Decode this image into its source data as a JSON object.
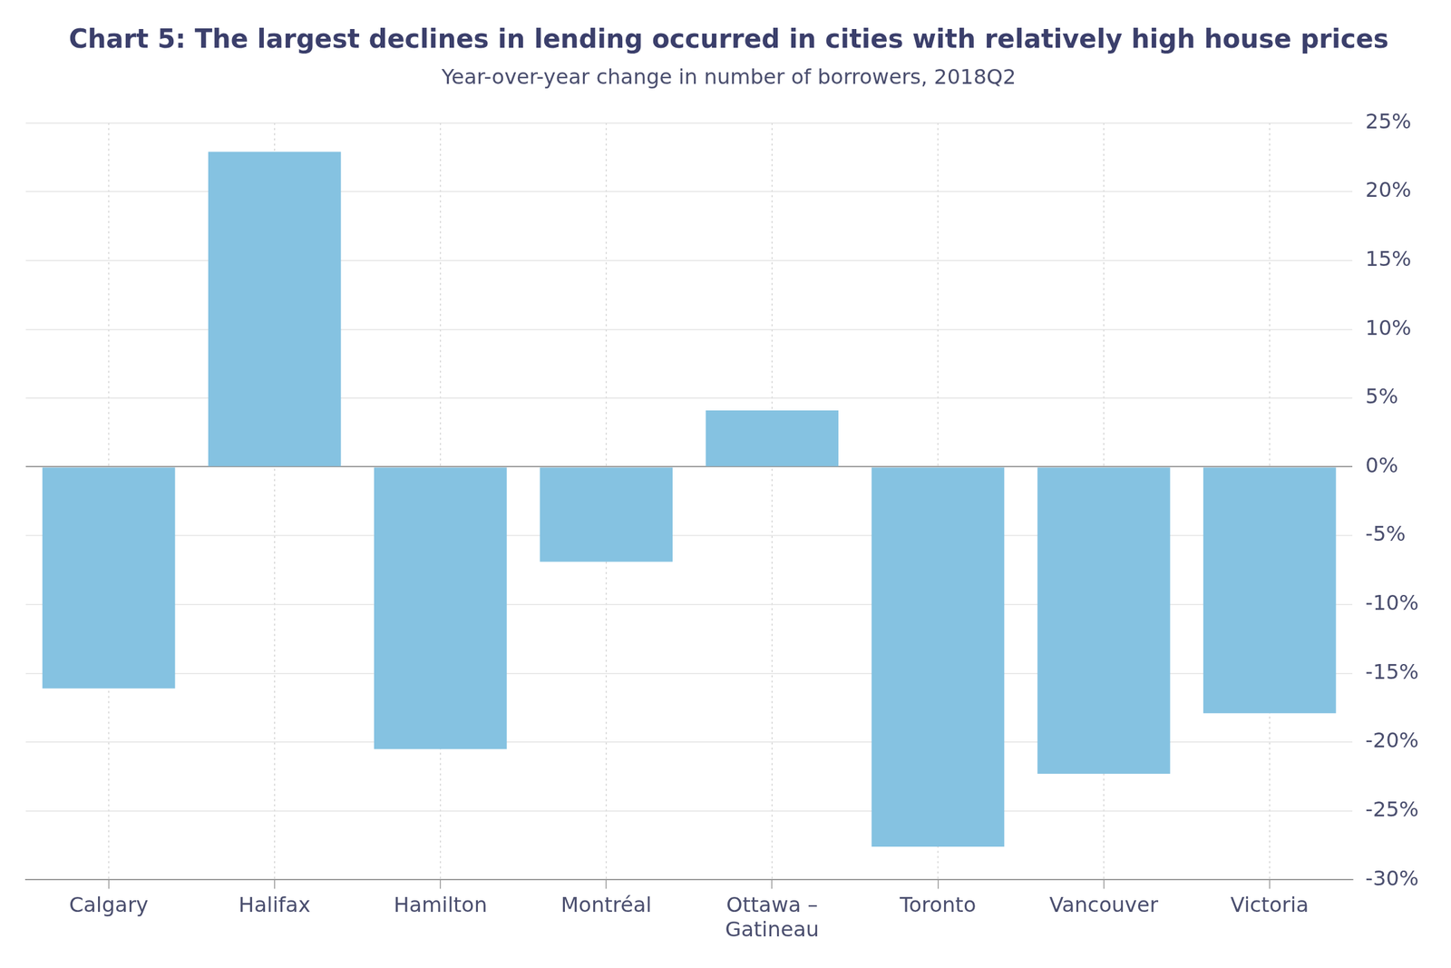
{
  "chart_data": {
    "type": "bar",
    "title": "Chart 5: The largest declines in lending occurred in cities with relatively high house prices",
    "subtitle": "Year-over-year change in number of borrowers, 2018Q2",
    "categories": [
      "Calgary",
      "Halifax",
      "Hamilton",
      "Montréal",
      "Ottawa – Gatineau",
      "Toronto",
      "Vancouver",
      "Victoria"
    ],
    "values": [
      -16.1,
      22.9,
      -20.5,
      -6.9,
      4.1,
      -27.6,
      -22.3,
      -17.9
    ],
    "color": "#85c2e1",
    "ylim": [
      -30,
      25
    ],
    "yticks": [
      {
        "value": -30,
        "label": "-30%"
      },
      {
        "value": -25,
        "label": "-25%"
      },
      {
        "value": -20,
        "label": "-20%"
      },
      {
        "value": -15,
        "label": "-15%"
      },
      {
        "value": -10,
        "label": "-10%"
      },
      {
        "value": -5,
        "label": "-5%"
      },
      {
        "value": 0,
        "label": "0%"
      },
      {
        "value": 5,
        "label": "5%"
      },
      {
        "value": 10,
        "label": "10%"
      },
      {
        "value": 15,
        "label": "15%"
      },
      {
        "value": 20,
        "label": "20%"
      },
      {
        "value": 25,
        "label": "25%"
      }
    ],
    "grid": true
  }
}
